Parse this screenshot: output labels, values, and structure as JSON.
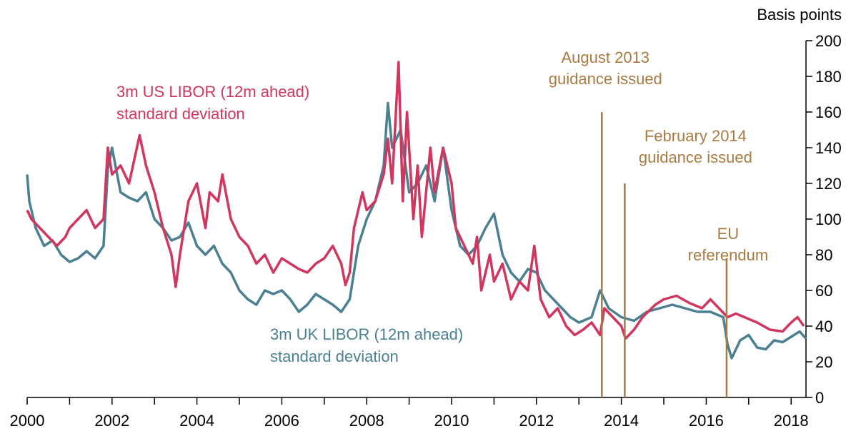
{
  "chart_data": {
    "type": "line",
    "y_axis_label": "Basis points",
    "xlim": [
      2000,
      2018.35
    ],
    "xticks": [
      2000,
      2002,
      2004,
      2006,
      2008,
      2010,
      2012,
      2014,
      2016,
      2018
    ],
    "x_minor_ticks": [
      2000,
      2001,
      2002,
      2003,
      2004,
      2005,
      2006,
      2007,
      2008,
      2009,
      2010,
      2011,
      2012,
      2013,
      2014,
      2015,
      2016,
      2017,
      2018
    ],
    "ylim": [
      0,
      200
    ],
    "yticks": [
      0,
      20,
      40,
      60,
      80,
      100,
      120,
      140,
      160,
      180,
      200
    ],
    "y_axis_side": "right",
    "series": [
      {
        "label_lines": [
          "3m UK LIBOR (12m ahead)",
          "standard deviation"
        ],
        "color": "#4b8092",
        "x": [
          2000.0,
          2000.05,
          2000.2,
          2000.4,
          2000.6,
          2000.8,
          2001.0,
          2001.2,
          2001.4,
          2001.6,
          2001.8,
          2001.9,
          2002.0,
          2002.2,
          2002.4,
          2002.6,
          2002.8,
          2003.0,
          2003.2,
          2003.4,
          2003.6,
          2003.8,
          2004.0,
          2004.2,
          2004.4,
          2004.6,
          2004.8,
          2005.0,
          2005.2,
          2005.4,
          2005.6,
          2005.8,
          2006.0,
          2006.2,
          2006.4,
          2006.6,
          2006.8,
          2007.0,
          2007.2,
          2007.4,
          2007.6,
          2007.8,
          2008.0,
          2008.2,
          2008.4,
          2008.5,
          2008.6,
          2008.8,
          2009.0,
          2009.2,
          2009.4,
          2009.6,
          2009.8,
          2010.0,
          2010.2,
          2010.4,
          2010.6,
          2010.8,
          2011.0,
          2011.2,
          2011.4,
          2011.6,
          2011.8,
          2012.0,
          2012.2,
          2012.4,
          2012.6,
          2012.8,
          2013.0,
          2013.3,
          2013.5,
          2013.7,
          2014.0,
          2014.3,
          2014.6,
          2014.9,
          2015.2,
          2015.5,
          2015.8,
          2016.1,
          2016.4,
          2016.5,
          2016.6,
          2016.8,
          2017.0,
          2017.2,
          2017.4,
          2017.6,
          2017.8,
          2018.0,
          2018.2,
          2018.35
        ],
        "values": [
          125,
          110,
          95,
          85,
          88,
          80,
          76,
          78,
          82,
          78,
          85,
          128,
          140,
          115,
          112,
          110,
          115,
          100,
          95,
          88,
          90,
          98,
          85,
          80,
          85,
          75,
          70,
          60,
          55,
          52,
          60,
          58,
          60,
          55,
          48,
          52,
          58,
          55,
          52,
          48,
          55,
          85,
          100,
          110,
          130,
          165,
          140,
          150,
          115,
          120,
          130,
          110,
          140,
          105,
          85,
          80,
          85,
          95,
          103,
          80,
          70,
          65,
          72,
          70,
          60,
          55,
          50,
          45,
          42,
          45,
          60,
          50,
          45,
          43,
          48,
          50,
          52,
          50,
          48,
          48,
          45,
          30,
          22,
          32,
          35,
          28,
          27,
          32,
          31,
          34,
          37,
          33
        ]
      },
      {
        "label_lines": [
          "3m US LIBOR (12m ahead)",
          "standard deviation"
        ],
        "color": "#d1365e",
        "x": [
          2000.0,
          2000.1,
          2000.3,
          2000.5,
          2000.7,
          2000.9,
          2001.0,
          2001.2,
          2001.4,
          2001.6,
          2001.8,
          2001.9,
          2002.0,
          2002.2,
          2002.4,
          2002.65,
          2002.8,
          2003.0,
          2003.2,
          2003.4,
          2003.5,
          2003.6,
          2003.8,
          2004.0,
          2004.2,
          2004.3,
          2004.5,
          2004.6,
          2004.8,
          2005.0,
          2005.2,
          2005.4,
          2005.6,
          2005.8,
          2006.0,
          2006.2,
          2006.4,
          2006.6,
          2006.8,
          2007.0,
          2007.2,
          2007.4,
          2007.5,
          2007.6,
          2007.7,
          2007.9,
          2008.0,
          2008.2,
          2008.4,
          2008.5,
          2008.6,
          2008.75,
          2008.85,
          2008.95,
          2009.1,
          2009.2,
          2009.3,
          2009.5,
          2009.6,
          2009.8,
          2010.0,
          2010.1,
          2010.3,
          2010.5,
          2010.6,
          2010.7,
          2010.9,
          2011.0,
          2011.2,
          2011.4,
          2011.6,
          2011.8,
          2011.95,
          2012.1,
          2012.3,
          2012.5,
          2012.7,
          2012.9,
          2013.1,
          2013.3,
          2013.5,
          2013.6,
          2013.8,
          2014.0,
          2014.1,
          2014.3,
          2014.5,
          2014.8,
          2015.0,
          2015.3,
          2015.6,
          2015.9,
          2016.1,
          2016.3,
          2016.5,
          2016.7,
          2016.9,
          2017.2,
          2017.5,
          2017.8,
          2018.0,
          2018.15,
          2018.3
        ],
        "values": [
          105,
          100,
          95,
          90,
          85,
          90,
          95,
          100,
          105,
          95,
          100,
          140,
          125,
          130,
          120,
          147,
          130,
          115,
          95,
          80,
          62,
          80,
          110,
          120,
          95,
          115,
          110,
          125,
          100,
          90,
          85,
          75,
          80,
          70,
          78,
          75,
          72,
          70,
          75,
          78,
          85,
          75,
          63,
          70,
          95,
          115,
          105,
          110,
          125,
          145,
          120,
          188,
          110,
          160,
          100,
          130,
          90,
          140,
          115,
          140,
          120,
          95,
          85,
          75,
          90,
          60,
          80,
          65,
          75,
          55,
          65,
          60,
          85,
          55,
          45,
          50,
          40,
          35,
          38,
          42,
          35,
          50,
          45,
          40,
          33,
          38,
          45,
          52,
          55,
          57,
          53,
          50,
          55,
          50,
          45,
          47,
          45,
          42,
          38,
          37,
          42,
          45,
          40
        ]
      }
    ],
    "annotations": [
      {
        "lines": [
          "August 2013",
          "guidance issued"
        ],
        "x": 2013.54,
        "y": 160,
        "color": "#a97b43"
      },
      {
        "lines": [
          "February 2014",
          "guidance issued"
        ],
        "x": 2014.08,
        "y": 120,
        "color": "#a97b43"
      },
      {
        "lines": [
          "EU",
          "referendum"
        ],
        "x": 2016.48,
        "y": 78,
        "color": "#a97b43"
      }
    ]
  }
}
